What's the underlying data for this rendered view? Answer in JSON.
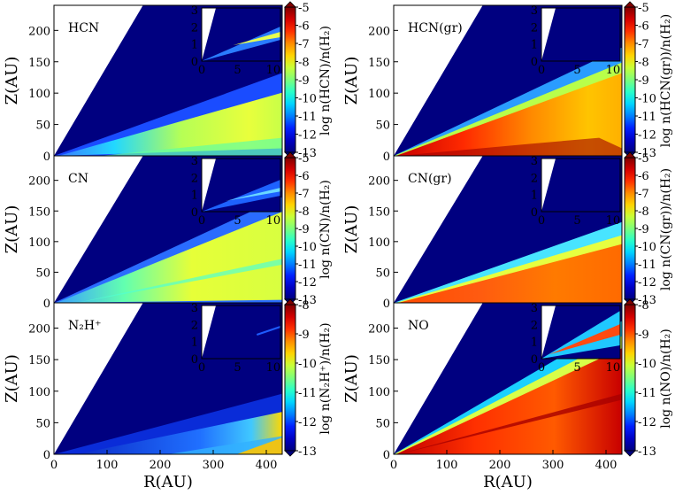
{
  "chart_data": [
    {
      "type": "heatmap",
      "title": "HCN",
      "inset": "hcn",
      "cbar_label": "log n(HCN)/n(H₂)",
      "cbar_ticks": [
        "-5",
        "-6",
        "-7",
        "-8",
        "-9",
        "-10",
        "-11",
        "-12",
        "-13"
      ],
      "clim": [
        -13,
        -5
      ],
      "ylabel": "Z(AU)",
      "xlabel": "",
      "yticks": [
        "0",
        "50",
        "100",
        "150",
        "200"
      ],
      "xticks": [],
      "xlim": [
        0,
        430
      ],
      "ylim": [
        0,
        240
      ],
      "inset_xticks": [
        "0",
        "5",
        "10"
      ],
      "inset_yticks": [
        "0",
        "1",
        "2",
        "3"
      ]
    },
    {
      "type": "heatmap",
      "title": "HCN(gr)",
      "inset": "plain",
      "cbar_label": "log n(HCN(gr))/n(H₂)",
      "cbar_ticks": [
        "-5",
        "-6",
        "-7",
        "-8",
        "-9",
        "-10",
        "-11",
        "-12",
        "-13"
      ],
      "clim": [
        -13,
        -5
      ],
      "ylabel": "Z(AU)",
      "xlabel": "",
      "yticks": [
        "0",
        "50",
        "100",
        "150",
        "200"
      ],
      "xticks": [],
      "xlim": [
        0,
        430
      ],
      "ylim": [
        0,
        240
      ],
      "inset_xticks": [
        "0",
        "5",
        "10"
      ],
      "inset_yticks": [
        "0",
        "1",
        "2",
        "3"
      ]
    },
    {
      "type": "heatmap",
      "title": "CN",
      "inset": "cn",
      "cbar_label": "log n(CN)/n(H₂)",
      "cbar_ticks": [
        "-5",
        "-6",
        "-7",
        "-8",
        "-9",
        "-10",
        "-11",
        "-12",
        "-13"
      ],
      "clim": [
        -13,
        -5
      ],
      "ylabel": "Z(AU)",
      "xlabel": "",
      "yticks": [
        "0",
        "50",
        "100",
        "150",
        "200"
      ],
      "xticks": [],
      "xlim": [
        0,
        430
      ],
      "ylim": [
        0,
        240
      ],
      "inset_xticks": [
        "0",
        "5",
        "10"
      ],
      "inset_yticks": [
        "0",
        "1",
        "2",
        "3"
      ]
    },
    {
      "type": "heatmap",
      "title": "CN(gr)",
      "inset": "plain",
      "cbar_label": "log n(CN(gr))/n(H₂)",
      "cbar_ticks": [
        "-5",
        "-6",
        "-7",
        "-8",
        "-9",
        "-10",
        "-11",
        "-12",
        "-13"
      ],
      "clim": [
        -13,
        -5
      ],
      "ylabel": "Z(AU)",
      "xlabel": "",
      "yticks": [
        "0",
        "50",
        "100",
        "150",
        "200"
      ],
      "xticks": [],
      "xlim": [
        0,
        430
      ],
      "ylim": [
        0,
        240
      ],
      "inset_xticks": [
        "0",
        "5",
        "10"
      ],
      "inset_yticks": [
        "0",
        "1",
        "2",
        "3"
      ]
    },
    {
      "type": "heatmap",
      "title": "N₂H⁺",
      "inset": "n2h",
      "cbar_label": "log n(N₂H⁺)/n(H₂)",
      "cbar_ticks": [
        "-8",
        "-9",
        "-10",
        "-11",
        "-12",
        "-13"
      ],
      "clim": [
        -13,
        -8
      ],
      "ylabel": "Z(AU)",
      "xlabel": "R(AU)",
      "yticks": [
        "0",
        "50",
        "100",
        "150",
        "200"
      ],
      "xticks": [
        "0",
        "100",
        "200",
        "300",
        "400"
      ],
      "xlim": [
        0,
        430
      ],
      "ylim": [
        0,
        240
      ],
      "inset_xticks": [
        "0",
        "5",
        "10"
      ],
      "inset_yticks": [
        "0",
        "1",
        "2",
        "3"
      ]
    },
    {
      "type": "heatmap",
      "title": "NO",
      "inset": "no",
      "cbar_label": "log n(NO)/n(H₂)",
      "cbar_ticks": [
        "-8",
        "-9",
        "-10",
        "-11",
        "-12",
        "-13"
      ],
      "clim": [
        -13,
        -8
      ],
      "ylabel": "Z(AU)",
      "xlabel": "R(AU)",
      "yticks": [
        "0",
        "50",
        "100",
        "150",
        "200"
      ],
      "xticks": [
        "0",
        "100",
        "200",
        "300",
        "400"
      ],
      "xlim": [
        0,
        430
      ],
      "ylim": [
        0,
        240
      ],
      "inset_xticks": [
        "0",
        "5",
        "10"
      ],
      "inset_yticks": [
        "0",
        "1",
        "2",
        "3"
      ]
    }
  ]
}
